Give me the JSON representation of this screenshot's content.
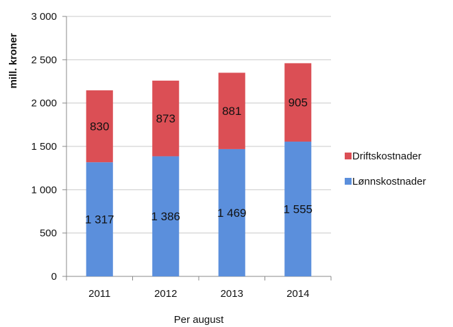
{
  "chart_data": {
    "type": "bar",
    "stacked": true,
    "categories": [
      "2011",
      "2012",
      "2013",
      "2014"
    ],
    "series": [
      {
        "name": "Lønnskostnader",
        "values": [
          1317,
          1386,
          1469,
          1555
        ],
        "labels": [
          "1 317",
          "1 386",
          "1 469",
          "1 555"
        ],
        "color": "#5b8fdc"
      },
      {
        "name": "Driftskostnader",
        "values": [
          830,
          873,
          881,
          905
        ],
        "labels": [
          "830",
          "873",
          "881",
          "905"
        ],
        "color": "#db4f55"
      }
    ],
    "xlabel": "Per august",
    "ylabel": "mill. kroner",
    "ylim": [
      0,
      3000
    ],
    "yticks": [
      0,
      500,
      1000,
      1500,
      2000,
      2500,
      3000
    ],
    "ytick_labels": [
      "0",
      "500",
      "1 000",
      "1 500",
      "2 000",
      "2 500",
      "3 000"
    ],
    "grid": true,
    "legend_position": "right"
  }
}
